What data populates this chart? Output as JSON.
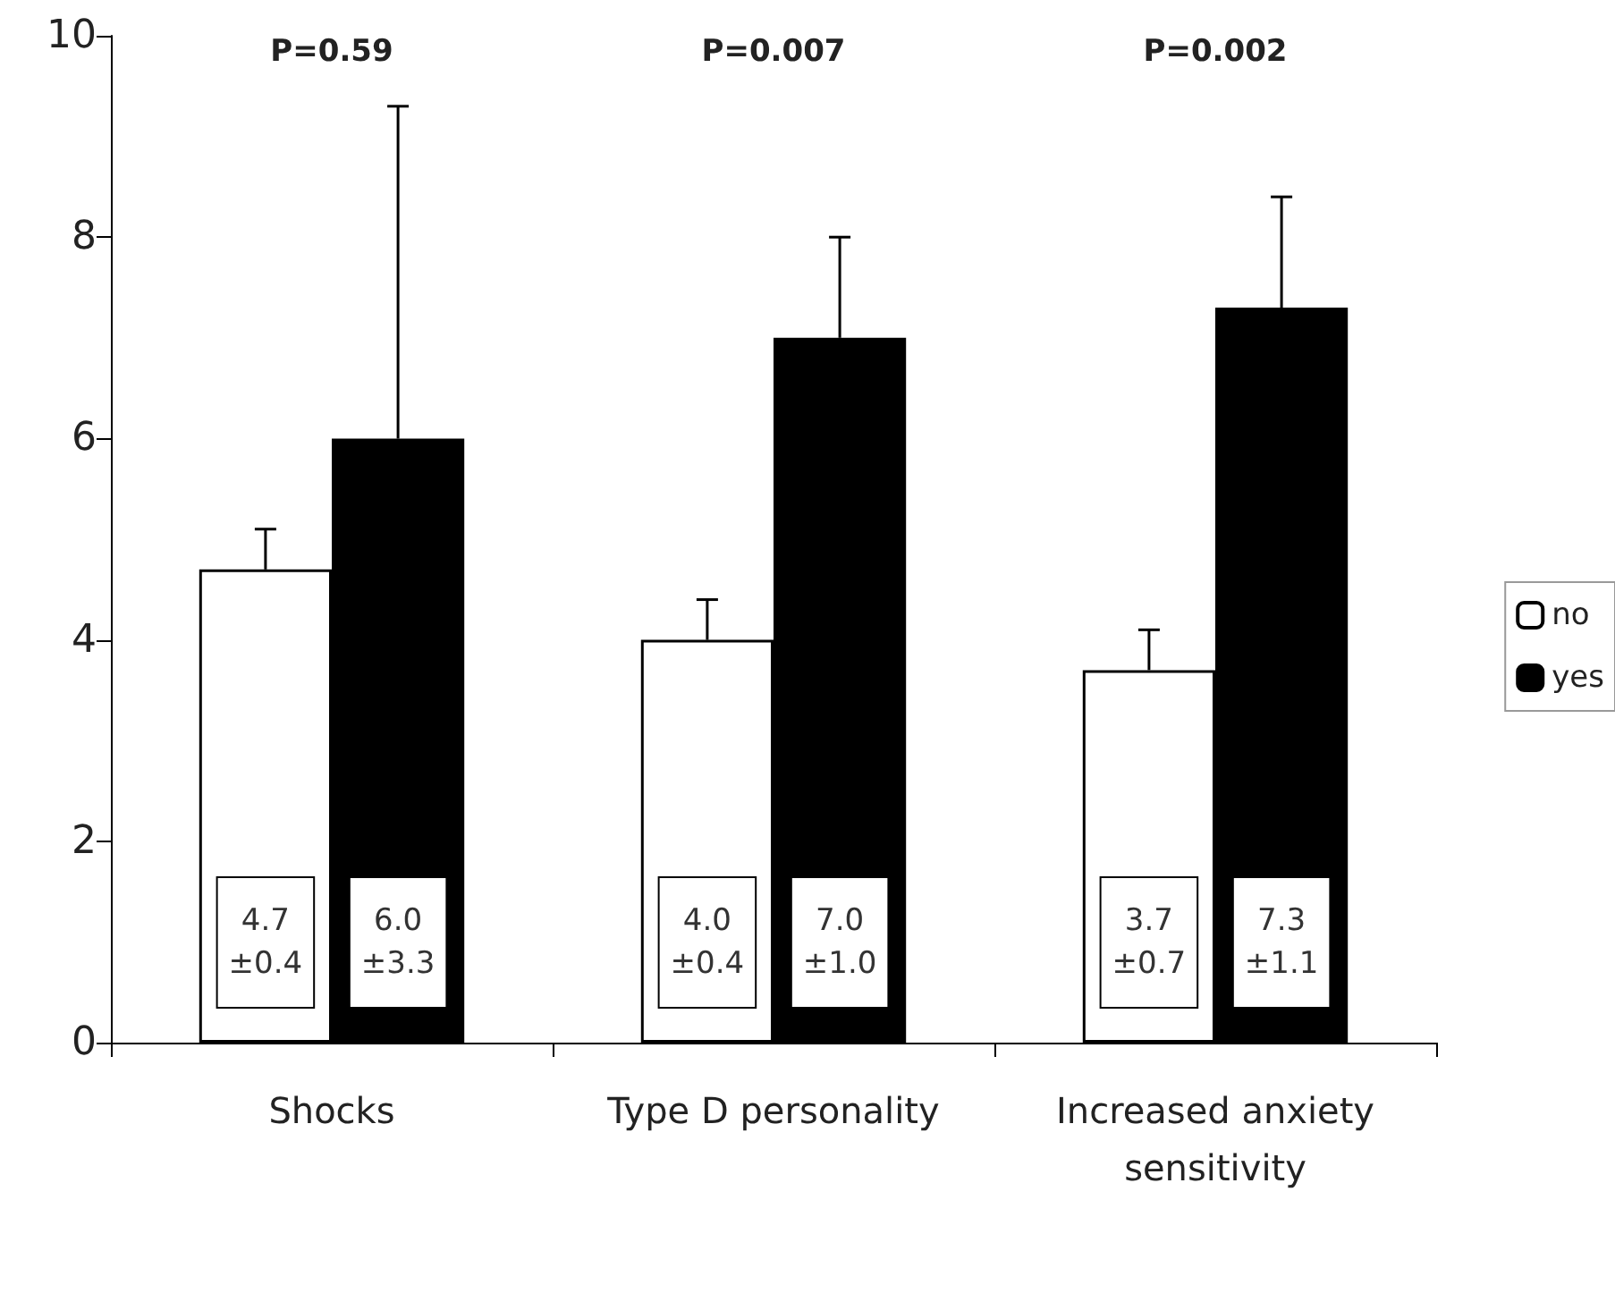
{
  "chart_data": {
    "type": "bar",
    "categories": [
      "Shocks",
      "Type D personality",
      "Increased anxiety\nsensitivity"
    ],
    "series": [
      {
        "name": "no",
        "color": "#ffffff",
        "values": [
          4.7,
          4.0,
          3.7
        ],
        "errors": [
          [
            4.7,
            5.1
          ],
          [
            4.0,
            4.4
          ],
          [
            3.7,
            4.1
          ]
        ],
        "value_labels": [
          "4.7\n±0.4",
          "4.0\n±0.4",
          "3.7\n±0.7"
        ]
      },
      {
        "name": "yes",
        "color": "#000000",
        "values": [
          6.0,
          7.0,
          7.3
        ],
        "errors": [
          [
            6.0,
            9.3
          ],
          [
            7.0,
            8.0
          ],
          [
            7.3,
            8.4
          ]
        ],
        "value_labels": [
          "6.0\n±3.3",
          "7.0\n±1.0",
          "7.3\n±1.1"
        ]
      }
    ],
    "annotations": [
      "P=0.59",
      "P=0.007",
      "P=0.002"
    ],
    "ylim": [
      0,
      10
    ],
    "yticks": [
      0,
      2,
      4,
      6,
      8,
      10
    ],
    "grid": false,
    "legend": "right"
  }
}
